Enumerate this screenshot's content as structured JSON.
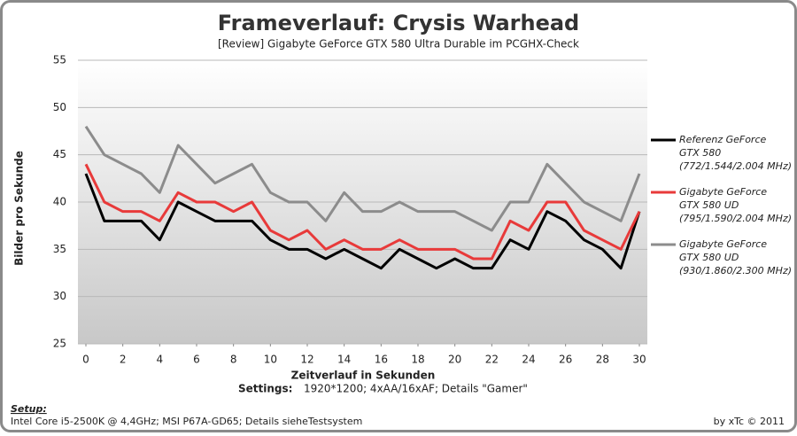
{
  "chart_data": {
    "type": "line",
    "title": "Frameverlauf: Crysis Warhead",
    "subtitle": "[Review] Gigabyte  GeForce GTX 580 Ultra Durable  im  PCGHX-Check",
    "x_label": "Zeitverlauf in Sekunden",
    "y_label": "Bilder  pro Sekunde",
    "settings_label": "Settings:",
    "settings_text": "1920*1200; 4xAA/16xAF; Details \"Gamer\"",
    "setup_label": "Setup:",
    "setup_text": "Intel Core i5-2500K @ 4,4GHz; MSI P67A-GD65; Details sieheTestsystem",
    "credit": "by xTc © 2011",
    "x": [
      0,
      1,
      2,
      3,
      4,
      5,
      6,
      7,
      8,
      9,
      10,
      11,
      12,
      13,
      14,
      15,
      16,
      17,
      18,
      19,
      20,
      21,
      22,
      23,
      24,
      25,
      26,
      27,
      28,
      29,
      30
    ],
    "xlim": [
      0,
      30
    ],
    "xticks": [
      0,
      2,
      4,
      6,
      8,
      10,
      12,
      14,
      16,
      18,
      20,
      22,
      24,
      26,
      28,
      30
    ],
    "ylim": [
      25,
      55
    ],
    "yticks": [
      25,
      30,
      35,
      40,
      45,
      50,
      55
    ],
    "grid": true,
    "legend": "right",
    "series": [
      {
        "name": [
          "Referenz GeForce",
          "GTX 580",
          "(772/1.544/2.004 MHz)"
        ],
        "color": "#000000",
        "values": [
          43,
          38,
          38,
          38,
          36,
          40,
          39,
          38,
          38,
          38,
          36,
          35,
          35,
          34,
          35,
          34,
          33,
          35,
          34,
          33,
          34,
          33,
          33,
          36,
          35,
          39,
          38,
          36,
          35,
          33,
          39
        ]
      },
      {
        "name": [
          "Gigabyte GeForce",
          "GTX 580 UD",
          "(795/1.590/2.004 MHz)"
        ],
        "color": "#e83a3a",
        "values": [
          44,
          40,
          39,
          39,
          38,
          41,
          40,
          40,
          39,
          40,
          37,
          36,
          37,
          35,
          36,
          35,
          35,
          36,
          35,
          35,
          35,
          34,
          34,
          38,
          37,
          40,
          40,
          37,
          36,
          35,
          39
        ]
      },
      {
        "name": [
          "Gigabyte GeForce",
          "GTX 580 UD",
          "(930/1.860/2.300 MHz)"
        ],
        "color": "#8c8c8c",
        "values": [
          48,
          45,
          44,
          43,
          41,
          46,
          44,
          42,
          43,
          44,
          41,
          40,
          40,
          38,
          41,
          39,
          39,
          40,
          39,
          39,
          39,
          38,
          37,
          40,
          40,
          44,
          42,
          40,
          39,
          38,
          43
        ]
      }
    ]
  }
}
